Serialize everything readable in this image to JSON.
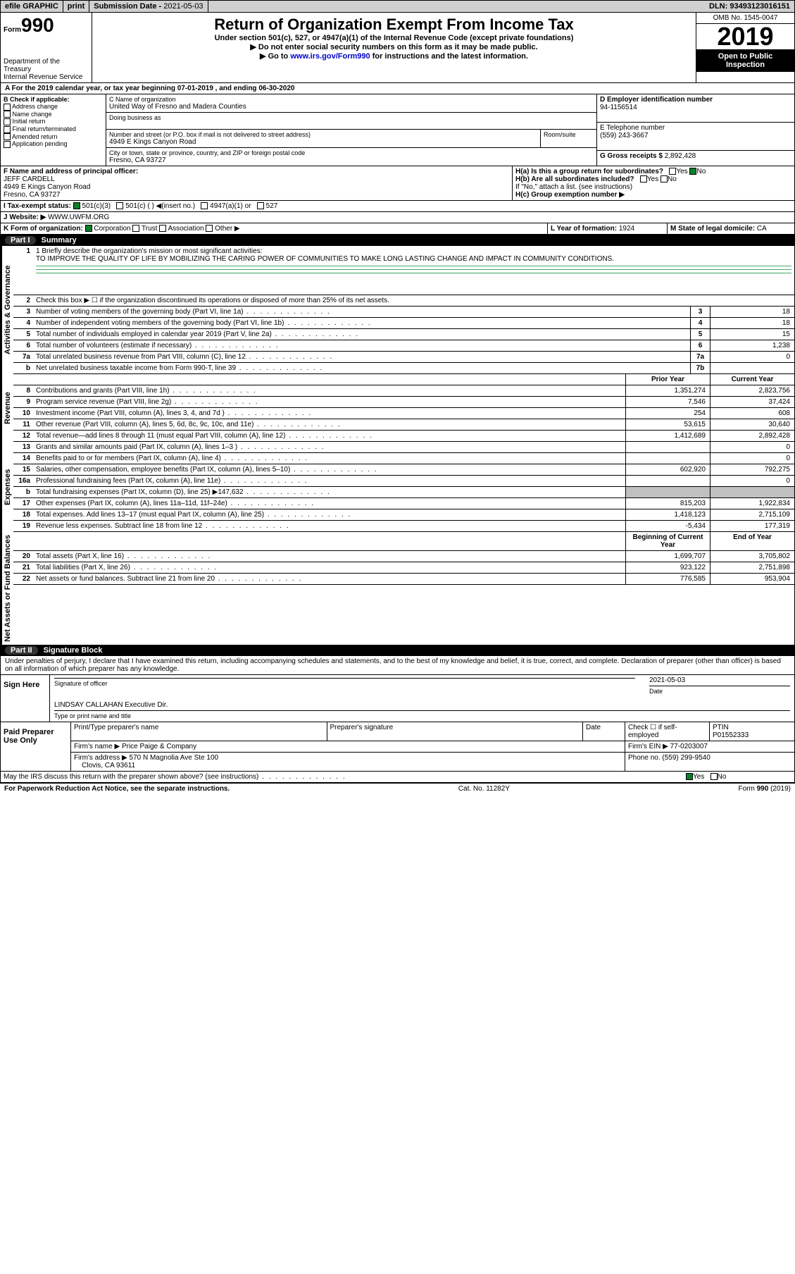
{
  "topbar": {
    "efile": "efile GRAPHIC",
    "print": "print",
    "subdate_label": "Submission Date - ",
    "subdate": "2021-05-03",
    "dln_label": "DLN: ",
    "dln": "93493123016151"
  },
  "header": {
    "form_label": "Form",
    "form_num": "990",
    "dept1": "Department of the Treasury",
    "dept2": "Internal Revenue Service",
    "title": "Return of Organization Exempt From Income Tax",
    "sub1": "Under section 501(c), 527, or 4947(a)(1) of the Internal Revenue Code (except private foundations)",
    "sub2": "▶ Do not enter social security numbers on this form as it may be made public.",
    "sub3_pre": "▶ Go to ",
    "sub3_link": "www.irs.gov/Form990",
    "sub3_post": " for instructions and the latest information.",
    "omb": "OMB No. 1545-0047",
    "year": "2019",
    "pub1": "Open to Public",
    "pub2": "Inspection"
  },
  "lineA": "A For the 2019 calendar year, or tax year beginning 07-01-2019    , and ending 06-30-2020",
  "boxB": {
    "label": "B Check if applicable:",
    "opts": [
      "Address change",
      "Name change",
      "Initial return",
      "Final return/terminated",
      "Amended return",
      "Application pending"
    ]
  },
  "boxC": {
    "name_label": "C Name of organization",
    "name": "United Way of Fresno and Madera Counties",
    "dba_label": "Doing business as",
    "street_label": "Number and street (or P.O. box if mail is not delivered to street address)",
    "room_label": "Room/suite",
    "street": "4949 E Kings Canyon Road",
    "city_label": "City or town, state or province, country, and ZIP or foreign postal code",
    "city": "Fresno, CA  93727"
  },
  "boxD": {
    "label": "D Employer identification number",
    "value": "94-1156514"
  },
  "boxE": {
    "label": "E Telephone number",
    "value": "(559) 243-3667"
  },
  "boxG": {
    "label": "G Gross receipts $ ",
    "value": "2,892,428"
  },
  "boxF": {
    "label": "F  Name and address of principal officer:",
    "name": "JEFF CARDELL",
    "addr1": "4949 E Kings Canyon Road",
    "addr2": "Fresno, CA  93727"
  },
  "boxH": {
    "a": "H(a)  Is this a group return for subordinates?",
    "b": "H(b)  Are all subordinates included?",
    "note": "If \"No,\" attach a list. (see instructions)",
    "c": "H(c)  Group exemption number ▶",
    "yes": "Yes",
    "no": "No"
  },
  "boxI": {
    "label": "I    Tax-exempt status:",
    "opts": [
      "501(c)(3)",
      "501(c) (  ) ◀(insert no.)",
      "4947(a)(1) or",
      "527"
    ]
  },
  "boxJ": {
    "label": "J   Website: ▶",
    "value": "WWW.UWFM.ORG"
  },
  "boxK": {
    "label": "K Form of organization:",
    "opts": [
      "Corporation",
      "Trust",
      "Association",
      "Other ▶"
    ]
  },
  "boxL": {
    "label": "L Year of formation: ",
    "value": "1924"
  },
  "boxM": {
    "label": "M State of legal domicile: ",
    "value": "CA"
  },
  "part1": {
    "num": "Part I",
    "title": "Summary"
  },
  "mission_label": "1  Briefly describe the organization's mission or most significant activities:",
  "mission": "TO IMPROVE THE QUALITY OF LIFE BY MOBILIZING THE CARING POWER OF COMMUNITIES TO MAKE LONG LASTING CHANGE AND IMPACT IN COMMUNITY CONDITIONS.",
  "line2": "Check this box ▶ ☐  if the organization discontinued its operations or disposed of more than 25% of its net assets.",
  "tabs": {
    "act": "Activities & Governance",
    "rev": "Revenue",
    "exp": "Expenses",
    "net": "Net Assets or Fund Balances"
  },
  "gov": [
    {
      "n": "3",
      "t": "Number of voting members of the governing body (Part VI, line 1a)",
      "b": "3",
      "v": "18"
    },
    {
      "n": "4",
      "t": "Number of independent voting members of the governing body (Part VI, line 1b)",
      "b": "4",
      "v": "18"
    },
    {
      "n": "5",
      "t": "Total number of individuals employed in calendar year 2019 (Part V, line 2a)",
      "b": "5",
      "v": "15"
    },
    {
      "n": "6",
      "t": "Total number of volunteers (estimate if necessary)",
      "b": "6",
      "v": "1,238"
    },
    {
      "n": "7a",
      "t": "Total unrelated business revenue from Part VIII, column (C), line 12",
      "b": "7a",
      "v": "0"
    },
    {
      "n": "b",
      "t": "Net unrelated business taxable income from Form 990-T, line 39",
      "b": "7b",
      "v": ""
    }
  ],
  "colhdr": {
    "prior": "Prior Year",
    "curr": "Current Year"
  },
  "rev": [
    {
      "n": "8",
      "t": "Contributions and grants (Part VIII, line 1h)",
      "p": "1,351,274",
      "c": "2,823,756"
    },
    {
      "n": "9",
      "t": "Program service revenue (Part VIII, line 2g)",
      "p": "7,546",
      "c": "37,424"
    },
    {
      "n": "10",
      "t": "Investment income (Part VIII, column (A), lines 3, 4, and 7d )",
      "p": "254",
      "c": "608"
    },
    {
      "n": "11",
      "t": "Other revenue (Part VIII, column (A), lines 5, 6d, 8c, 9c, 10c, and 11e)",
      "p": "53,615",
      "c": "30,640"
    },
    {
      "n": "12",
      "t": "Total revenue—add lines 8 through 11 (must equal Part VIII, column (A), line 12)",
      "p": "1,412,689",
      "c": "2,892,428"
    }
  ],
  "exp": [
    {
      "n": "13",
      "t": "Grants and similar amounts paid (Part IX, column (A), lines 1–3 )",
      "p": "",
      "c": "0"
    },
    {
      "n": "14",
      "t": "Benefits paid to or for members (Part IX, column (A), line 4)",
      "p": "",
      "c": "0"
    },
    {
      "n": "15",
      "t": "Salaries, other compensation, employee benefits (Part IX, column (A), lines 5–10)",
      "p": "602,920",
      "c": "792,275"
    },
    {
      "n": "16a",
      "t": "Professional fundraising fees (Part IX, column (A), line 11e)",
      "p": "",
      "c": "0"
    },
    {
      "n": "b",
      "t": "Total fundraising expenses (Part IX, column (D), line 25) ▶147,632",
      "p": "shade",
      "c": "shade"
    },
    {
      "n": "17",
      "t": "Other expenses (Part IX, column (A), lines 11a–11d, 11f–24e)",
      "p": "815,203",
      "c": "1,922,834"
    },
    {
      "n": "18",
      "t": "Total expenses. Add lines 13–17 (must equal Part IX, column (A), line 25)",
      "p": "1,418,123",
      "c": "2,715,109"
    },
    {
      "n": "19",
      "t": "Revenue less expenses. Subtract line 18 from line 12",
      "p": "-5,434",
      "c": "177,319"
    }
  ],
  "nethdr": {
    "b": "Beginning of Current Year",
    "e": "End of Year"
  },
  "net": [
    {
      "n": "20",
      "t": "Total assets (Part X, line 16)",
      "p": "1,699,707",
      "c": "3,705,802"
    },
    {
      "n": "21",
      "t": "Total liabilities (Part X, line 26)",
      "p": "923,122",
      "c": "2,751,898"
    },
    {
      "n": "22",
      "t": "Net assets or fund balances. Subtract line 21 from line 20",
      "p": "776,585",
      "c": "953,904"
    }
  ],
  "part2": {
    "num": "Part II",
    "title": "Signature Block"
  },
  "penalty": "Under penalties of perjury, I declare that I have examined this return, including accompanying schedules and statements, and to the best of my knowledge and belief, it is true, correct, and complete. Declaration of preparer (other than officer) is based on all information of which preparer has any knowledge.",
  "sign": {
    "here": "Sign Here",
    "sig_label": "Signature of officer",
    "date_label": "Date",
    "date": "2021-05-03",
    "name": "LINDSAY CALLAHAN  Executive Dir.",
    "name_label": "Type or print name and title"
  },
  "prep": {
    "title": "Paid Preparer Use Only",
    "h1": "Print/Type preparer's name",
    "h2": "Preparer's signature",
    "h3": "Date",
    "h4_pre": "Check ☐ if self-employed",
    "h5": "PTIN",
    "ptin": "P01552333",
    "firm_label": "Firm's name    ▶",
    "firm": "Price Paige & Company",
    "ein_label": "Firm's EIN ▶",
    "ein": "77-0203007",
    "addr_label": "Firm's address ▶",
    "addr1": "570 N Magnolia Ave Ste 100",
    "addr2": "Clovis, CA  93611",
    "phone_label": "Phone no. ",
    "phone": "(559) 299-9540"
  },
  "discuss": "May the IRS discuss this return with the preparer shown above? (see instructions)",
  "footer": {
    "pra": "For Paperwork Reduction Act Notice, see the separate instructions.",
    "cat": "Cat. No. 11282Y",
    "form": "Form 990 (2019)"
  }
}
